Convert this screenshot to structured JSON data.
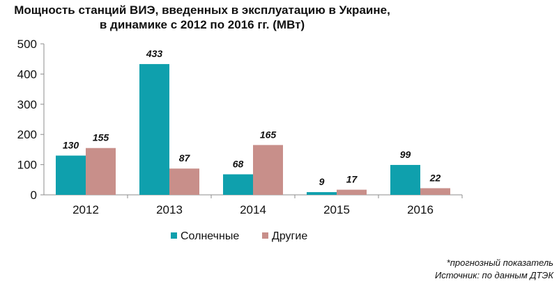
{
  "chart_data": {
    "type": "bar",
    "title_lines": [
      "Мощность станций ВИЭ, введенных в эксплуатацию в Украине,",
      "в динамике с 2012 по 2016 гг. (МВт)"
    ],
    "categories": [
      "2012",
      "2013",
      "2014",
      "2015",
      "2016"
    ],
    "series": [
      {
        "name": "Солнечные",
        "values": [
          130,
          433,
          68,
          9,
          99
        ],
        "color": "#0fa0ad"
      },
      {
        "name": "Другие",
        "values": [
          155,
          87,
          165,
          17,
          22
        ],
        "color": "#c88f8a"
      }
    ],
    "ylim": [
      0,
      500
    ],
    "yticks": [
      0,
      100,
      200,
      300,
      400,
      500
    ],
    "grid": false,
    "legend": "bottom",
    "data_labels": true
  },
  "notes": {
    "forecast": "*прогнозный показатель",
    "source": "Источник: по данным ДТЭК"
  }
}
